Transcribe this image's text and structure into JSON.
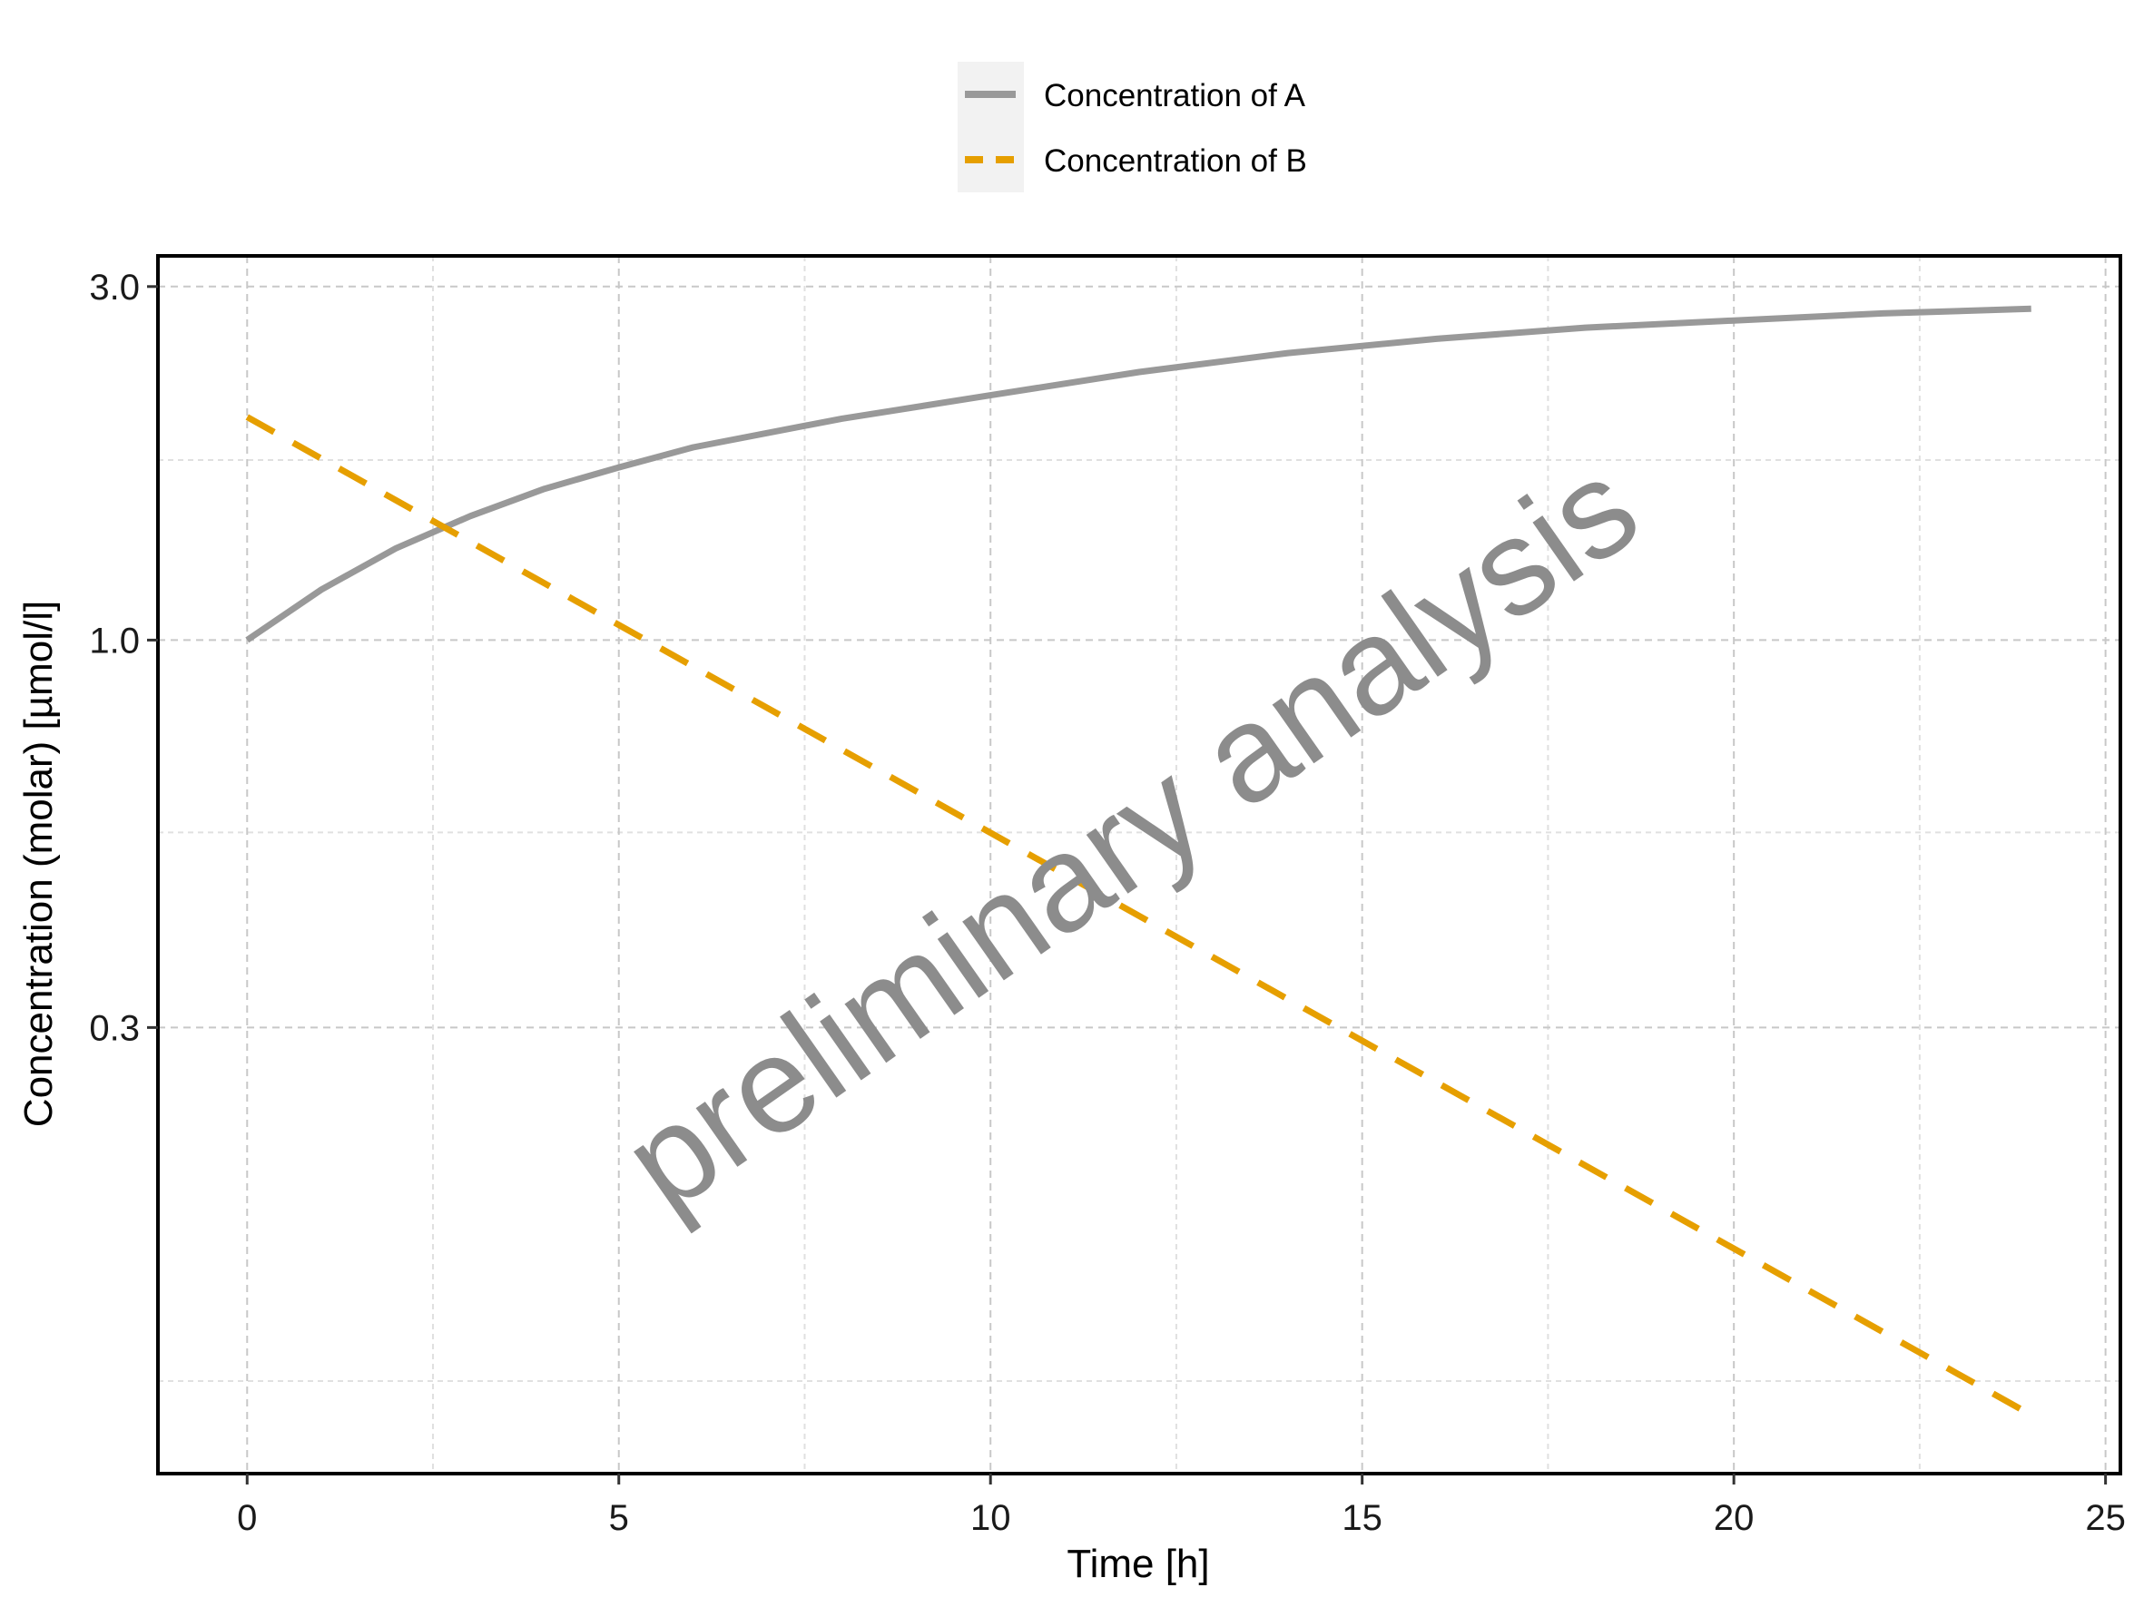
{
  "chart_data": {
    "type": "line",
    "title": "",
    "xlabel": "Time [h]",
    "ylabel": "Concentration (molar) [µmol/l]",
    "x_scale": "linear",
    "y_scale": "log",
    "xlim": [
      -1.2,
      25.2
    ],
    "ylim": [
      0.075,
      3.3
    ],
    "x_ticks": [
      0,
      5,
      10,
      15,
      20,
      25
    ],
    "x_tick_labels": [
      "0",
      "5",
      "10",
      "15",
      "20",
      "25"
    ],
    "x_minor_gridlines": [
      2.5,
      7.5,
      12.5,
      17.5,
      22.5
    ],
    "y_ticks": [
      0.3,
      1.0,
      3.0
    ],
    "y_tick_labels": [
      "0.3",
      "1.0",
      "3.0"
    ],
    "y_minor_gridlines": [
      0.1,
      0.55,
      1.75
    ],
    "grid": true,
    "legend_position": "top-center",
    "watermark": "preliminary analysis",
    "series": [
      {
        "name": "Concentration of A",
        "color": "#999999",
        "line_style": "solid",
        "x": [
          0,
          1,
          2,
          3,
          4,
          5,
          6,
          8,
          10,
          12,
          14,
          16,
          18,
          20,
          22,
          24
        ],
        "y": [
          1.0,
          1.17,
          1.33,
          1.47,
          1.6,
          1.71,
          1.82,
          1.99,
          2.14,
          2.3,
          2.44,
          2.55,
          2.64,
          2.7,
          2.76,
          2.8
        ]
      },
      {
        "name": "Concentration of B",
        "color": "#E69F00",
        "line_style": "dashed",
        "x": [
          0,
          24
        ],
        "y": [
          2.0,
          0.09
        ]
      }
    ]
  }
}
